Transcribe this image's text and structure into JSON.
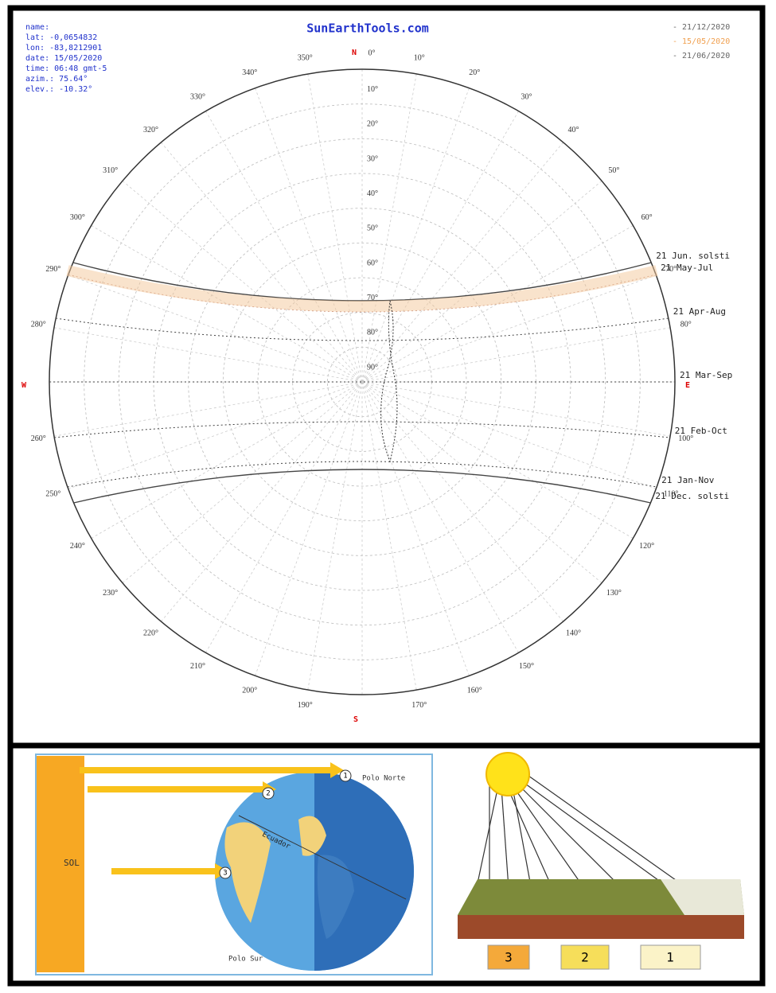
{
  "title": "SunEarthTools.com",
  "info": [
    "name:",
    "lat: -0,0654832",
    "lon: -83,8212901",
    "date: 15/05/2020",
    "time: 06:48 gmt-5",
    "azim.: 75.64°",
    "elev.: -10.32°"
  ],
  "legend": [
    "- 21/12/2020",
    "- 15/05/2020",
    "- 21/06/2020"
  ],
  "cardinals": {
    "north": "N",
    "east": "E",
    "south": "S",
    "west": "W"
  },
  "azimuth_labels": [
    "0°",
    "10°",
    "20°",
    "30°",
    "40°",
    "50°",
    "60°",
    "70°",
    "80°",
    "100°",
    "110°",
    "120°",
    "130°",
    "140°",
    "150°",
    "160°",
    "170°",
    "190°",
    "200°",
    "210°",
    "220°",
    "230°",
    "240°",
    "250°",
    "260°",
    "280°",
    "290°",
    "300°",
    "310°",
    "320°",
    "330°",
    "340°",
    "350°"
  ],
  "elevation_labels": [
    "10°",
    "20°",
    "30°",
    "40°",
    "50°",
    "60°",
    "70°",
    "80°",
    "90°"
  ],
  "path_labels": [
    "21 Jun. solsti",
    "21 May-Jul",
    "21 Apr-Aug",
    "21 Mar-Sep",
    "21 Feb-Oct",
    "21 Jan-Nov",
    "21 Dec. solsti"
  ],
  "figure_globe": {
    "sun": "SOL",
    "north_pole": "Polo Norte",
    "south_pole": "Polo Sur",
    "equator": "Ecuador",
    "markers": [
      "1",
      "2",
      "3"
    ]
  },
  "figure_terrain": {
    "zones": [
      "3",
      "2",
      "1"
    ]
  }
}
